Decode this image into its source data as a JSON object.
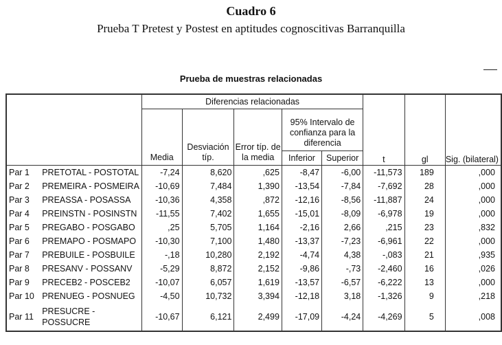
{
  "caption": {
    "number": "Cuadro 6",
    "title": "Prueba T Pretest y Postest en aptitudes cognoscitivas Barranquilla"
  },
  "table": {
    "title": "Prueba de muestras relacionadas",
    "group_header": "Diferencias relacionadas",
    "ci_header": "95% Intervalo de confianza para la diferencia",
    "columns": {
      "media": "Media",
      "desv": "Desviación típ.",
      "error": "Error típ. de la media",
      "inferior": "Inferior",
      "superior": "Superior",
      "t": "t",
      "gl": "gl",
      "sig": "Sig. (bilateral)"
    },
    "rows": [
      {
        "par": "Par 1",
        "name": "PRETOTAL - POSTOTAL",
        "media": "-7,24",
        "desv": "8,620",
        "error": ",625",
        "inferior": "-8,47",
        "superior": "-6,00",
        "t": "-11,573",
        "gl": "189",
        "sig": ",000"
      },
      {
        "par": "Par 2",
        "name": "PREMEIRA - POSMEIRA",
        "media": "-10,69",
        "desv": "7,484",
        "error": "1,390",
        "inferior": "-13,54",
        "superior": "-7,84",
        "t": "-7,692",
        "gl": "28",
        "sig": ",000"
      },
      {
        "par": "Par 3",
        "name": "PREASSA - POSASSA",
        "media": "-10,36",
        "desv": "4,358",
        "error": ",872",
        "inferior": "-12,16",
        "superior": "-8,56",
        "t": "-11,887",
        "gl": "24",
        "sig": ",000"
      },
      {
        "par": "Par 4",
        "name": "PREINSTN - POSINSTN",
        "media": "-11,55",
        "desv": "7,402",
        "error": "1,655",
        "inferior": "-15,01",
        "superior": "-8,09",
        "t": "-6,978",
        "gl": "19",
        "sig": ",000"
      },
      {
        "par": "Par 5",
        "name": "PREGABO - POSGABO",
        "media": ",25",
        "desv": "5,705",
        "error": "1,164",
        "inferior": "-2,16",
        "superior": "2,66",
        "t": ",215",
        "gl": "23",
        "sig": ",832"
      },
      {
        "par": "Par 6",
        "name": "PREMAPO - POSMAPO",
        "media": "-10,30",
        "desv": "7,100",
        "error": "1,480",
        "inferior": "-13,37",
        "superior": "-7,23",
        "t": "-6,961",
        "gl": "22",
        "sig": ",000"
      },
      {
        "par": "Par 7",
        "name": "PREBUILE - POSBUILE",
        "media": "-,18",
        "desv": "10,280",
        "error": "2,192",
        "inferior": "-4,74",
        "superior": "4,38",
        "t": "-,083",
        "gl": "21",
        "sig": ",935"
      },
      {
        "par": "Par 8",
        "name": "PRESANV - POSSANV",
        "media": "-5,29",
        "desv": "8,872",
        "error": "2,152",
        "inferior": "-9,86",
        "superior": "-,73",
        "t": "-2,460",
        "gl": "16",
        "sig": ",026"
      },
      {
        "par": "Par 9",
        "name": "PRECEB2 - POSCEB2",
        "media": "-10,07",
        "desv": "6,057",
        "error": "1,619",
        "inferior": "-13,57",
        "superior": "-6,57",
        "t": "-6,222",
        "gl": "13",
        "sig": ",000"
      },
      {
        "par": "Par 10",
        "name": "PRENUEG - POSNUEG",
        "media": "-4,50",
        "desv": "10,732",
        "error": "3,394",
        "inferior": "-12,18",
        "superior": "3,18",
        "t": "-1,326",
        "gl": "9",
        "sig": ",218"
      },
      {
        "par": "Par 11",
        "name": "PRESUCRE - POSSUCRE",
        "media": "-10,67",
        "desv": "6,121",
        "error": "2,499",
        "inferior": "-17,09",
        "superior": "-4,24",
        "t": "-4,269",
        "gl": "5",
        "sig": ",008"
      }
    ]
  }
}
